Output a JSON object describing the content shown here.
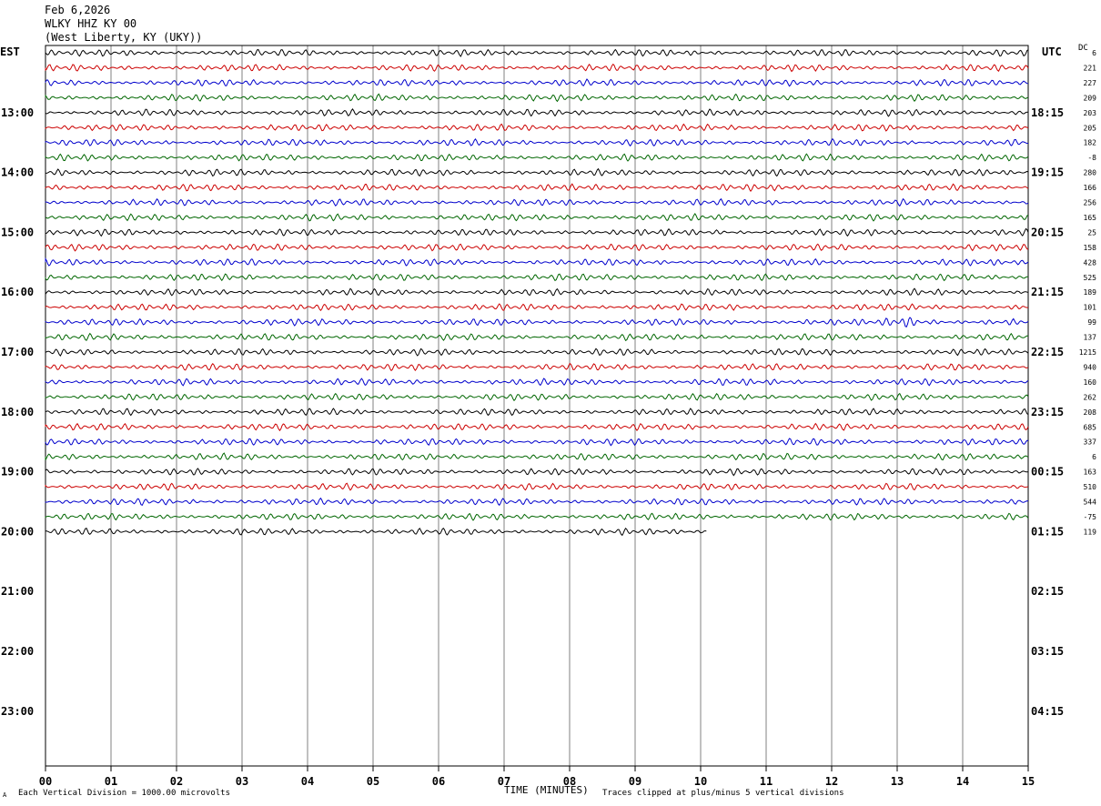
{
  "header": {
    "date": "Feb 6,2026",
    "station": "WLKY HHZ KY 00",
    "location": "(West Liberty, KY (UKY))"
  },
  "left_timezone": "EST",
  "right_timezone": "UTC",
  "dc_label": "DC",
  "footer": {
    "scale_note": "Each Vertical Division = 1000.00 microvolts",
    "xlabel": "TIME (MINUTES)",
    "clip_note": "Traces clipped at plus/minus 5 vertical divisions",
    "corner_mark": "A"
  },
  "colors": {
    "trace_cycle": [
      "#000000",
      "#cc0000",
      "#0000cc",
      "#006600"
    ],
    "grid": "#808080",
    "frame": "#000000"
  },
  "chart_data": {
    "type": "line",
    "title": "WLKY HHZ KY 00",
    "xlabel": "TIME (MINUTES)",
    "ylabel": "",
    "xlim": [
      0,
      15
    ],
    "x_ticks": [
      "00",
      "01",
      "02",
      "03",
      "04",
      "05",
      "06",
      "07",
      "08",
      "09",
      "10",
      "11",
      "12",
      "13",
      "14",
      "15"
    ],
    "left_hour_labels": [
      "13:00",
      "14:00",
      "15:00",
      "16:00",
      "17:00",
      "18:00",
      "19:00",
      "20:00",
      "21:00",
      "22:00",
      "23:00"
    ],
    "right_hour_labels": [
      "18:15",
      "19:15",
      "20:15",
      "21:15",
      "22:15",
      "23:15",
      "00:15",
      "01:15",
      "02:15",
      "03:15",
      "04:15"
    ],
    "trace_minutes": 15,
    "total_rows": 48,
    "first_hour_row_offset": 4,
    "grid": true,
    "traces": [
      {
        "dc": "6",
        "minutes": 15,
        "event_at": null
      },
      {
        "dc": "221",
        "minutes": 15,
        "event_at": null
      },
      {
        "dc": "227",
        "minutes": 15,
        "event_at": null
      },
      {
        "dc": "209",
        "minutes": 15,
        "event_at": null
      },
      {
        "dc": "203",
        "minutes": 15,
        "event_at": null
      },
      {
        "dc": "205",
        "minutes": 15,
        "event_at": null
      },
      {
        "dc": "182",
        "minutes": 15,
        "event_at": null
      },
      {
        "dc": "-8",
        "minutes": 15,
        "event_at": null
      },
      {
        "dc": "280",
        "minutes": 15,
        "event_at": null
      },
      {
        "dc": "166",
        "minutes": 15,
        "event_at": null
      },
      {
        "dc": "256",
        "minutes": 15,
        "event_at": null
      },
      {
        "dc": "165",
        "minutes": 15,
        "event_at": null
      },
      {
        "dc": "25",
        "minutes": 15,
        "event_at": null
      },
      {
        "dc": "158",
        "minutes": 15,
        "event_at": null
      },
      {
        "dc": "428",
        "minutes": 15,
        "event_at": null
      },
      {
        "dc": "525",
        "minutes": 15,
        "event_at": null
      },
      {
        "dc": "189",
        "minutes": 15,
        "event_at": null
      },
      {
        "dc": "101",
        "minutes": 15,
        "event_at": null
      },
      {
        "dc": "99",
        "minutes": 15,
        "event_at": 13.1
      },
      {
        "dc": "137",
        "minutes": 15,
        "event_at": null
      },
      {
        "dc": "1215",
        "minutes": 15,
        "event_at": null
      },
      {
        "dc": "940",
        "minutes": 15,
        "event_at": null
      },
      {
        "dc": "160",
        "minutes": 15,
        "event_at": null
      },
      {
        "dc": "262",
        "minutes": 15,
        "event_at": null
      },
      {
        "dc": "208",
        "minutes": 15,
        "event_at": null
      },
      {
        "dc": "685",
        "minutes": 15,
        "event_at": null
      },
      {
        "dc": "337",
        "minutes": 15,
        "event_at": null
      },
      {
        "dc": "6",
        "minutes": 15,
        "event_at": null
      },
      {
        "dc": "163",
        "minutes": 15,
        "event_at": null
      },
      {
        "dc": "510",
        "minutes": 15,
        "event_at": null
      },
      {
        "dc": "544",
        "minutes": 15,
        "event_at": null
      },
      {
        "dc": "-75",
        "minutes": 15,
        "event_at": null
      },
      {
        "dc": "119",
        "minutes": 10.1,
        "event_at": null
      }
    ]
  }
}
